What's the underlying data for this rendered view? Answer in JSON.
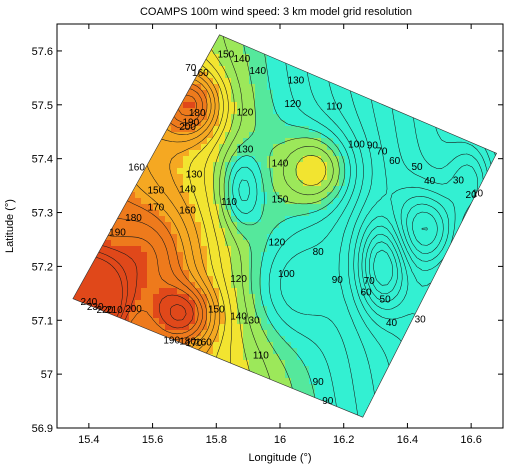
{
  "chart_data": {
    "type": "heatmap",
    "title": "COAMPS 100m wind speed: 3 km model grid resolution",
    "xlabel": "Longitude (°)",
    "ylabel": "Latitude (°)",
    "xlim": [
      15.3,
      16.7
    ],
    "ylim": [
      56.9,
      57.65
    ],
    "x_ticks": [
      "15.4",
      "15.6",
      "15.8",
      "16",
      "16.2",
      "16.4",
      "16.6"
    ],
    "y_ticks": [
      "57.6",
      "57.5",
      "57.4",
      "57.3",
      "57.2",
      "57.1",
      "57",
      "56.9"
    ],
    "x_tick_values": [
      15.4,
      15.6,
      15.8,
      16.0,
      16.2,
      16.4,
      16.6
    ],
    "y_tick_values": [
      57.6,
      57.5,
      57.4,
      57.3,
      57.2,
      57.1,
      57.0,
      56.9
    ],
    "domain_corners": [
      {
        "lon": 15.81,
        "lat": 57.63
      },
      {
        "lon": 16.68,
        "lat": 57.41
      },
      {
        "lon": 16.26,
        "lat": 56.92
      },
      {
        "lon": 15.35,
        "lat": 57.14
      }
    ],
    "color_scale": [
      {
        "max": 110,
        "color": "#33f0d2"
      },
      {
        "max": 120,
        "color": "#55e89c"
      },
      {
        "max": 140,
        "color": "#9ce85a"
      },
      {
        "max": 165,
        "color": "#f2e430"
      },
      {
        "max": 195,
        "color": "#f5a822"
      },
      {
        "max": 225,
        "color": "#ee7a1c"
      },
      {
        "max": 999,
        "color": "#e0481a"
      }
    ],
    "grid": false,
    "contour_labels": [
      {
        "text": "140",
        "lon": 15.88,
        "lat": 57.584
      },
      {
        "text": "150",
        "lon": 15.83,
        "lat": 57.593
      },
      {
        "text": "70",
        "lon": 15.72,
        "lat": 57.568
      },
      {
        "text": "160",
        "lon": 15.75,
        "lat": 57.558
      },
      {
        "text": "140",
        "lon": 15.93,
        "lat": 57.562
      },
      {
        "text": "130",
        "lon": 16.05,
        "lat": 57.544
      },
      {
        "text": "110",
        "lon": 16.17,
        "lat": 57.496
      },
      {
        "text": "180",
        "lon": 15.74,
        "lat": 57.484
      },
      {
        "text": "190",
        "lon": 15.72,
        "lat": 57.466
      },
      {
        "text": "200",
        "lon": 15.71,
        "lat": 57.458
      },
      {
        "text": "120",
        "lon": 15.89,
        "lat": 57.485
      },
      {
        "text": "120",
        "lon": 16.04,
        "lat": 57.501
      },
      {
        "text": "130",
        "lon": 15.89,
        "lat": 57.416
      },
      {
        "text": "140",
        "lon": 16.0,
        "lat": 57.39
      },
      {
        "text": "100",
        "lon": 16.24,
        "lat": 57.426
      },
      {
        "text": "90",
        "lon": 16.29,
        "lat": 57.424
      },
      {
        "text": "70",
        "lon": 16.32,
        "lat": 57.413
      },
      {
        "text": "60",
        "lon": 16.36,
        "lat": 57.395
      },
      {
        "text": "50",
        "lon": 16.43,
        "lat": 57.384
      },
      {
        "text": "40",
        "lon": 16.47,
        "lat": 57.358
      },
      {
        "text": "30",
        "lon": 16.56,
        "lat": 57.359
      },
      {
        "text": "20",
        "lon": 16.6,
        "lat": 57.332
      },
      {
        "text": "10",
        "lon": 16.62,
        "lat": 57.335
      },
      {
        "text": "160",
        "lon": 15.55,
        "lat": 57.383
      },
      {
        "text": "130",
        "lon": 15.73,
        "lat": 57.37
      },
      {
        "text": "140",
        "lon": 15.71,
        "lat": 57.342
      },
      {
        "text": "150",
        "lon": 15.61,
        "lat": 57.34
      },
      {
        "text": "160",
        "lon": 15.71,
        "lat": 57.303
      },
      {
        "text": "170",
        "lon": 15.61,
        "lat": 57.309
      },
      {
        "text": "180",
        "lon": 15.54,
        "lat": 57.289
      },
      {
        "text": "190",
        "lon": 15.49,
        "lat": 57.262
      },
      {
        "text": "110",
        "lon": 15.84,
        "lat": 57.319
      },
      {
        "text": "150",
        "lon": 16.0,
        "lat": 57.323
      },
      {
        "text": "120",
        "lon": 15.99,
        "lat": 57.244
      },
      {
        "text": "80",
        "lon": 16.12,
        "lat": 57.226
      },
      {
        "text": "100",
        "lon": 16.02,
        "lat": 57.185
      },
      {
        "text": "120",
        "lon": 15.87,
        "lat": 57.176
      },
      {
        "text": "90",
        "lon": 16.18,
        "lat": 57.174
      },
      {
        "text": "70",
        "lon": 16.28,
        "lat": 57.172
      },
      {
        "text": "60",
        "lon": 16.27,
        "lat": 57.151
      },
      {
        "text": "50",
        "lon": 16.33,
        "lat": 57.138
      },
      {
        "text": "40",
        "lon": 16.35,
        "lat": 57.094
      },
      {
        "text": "30",
        "lon": 16.44,
        "lat": 57.101
      },
      {
        "text": "240",
        "lon": 15.4,
        "lat": 57.133
      },
      {
        "text": "230",
        "lon": 15.42,
        "lat": 57.124
      },
      {
        "text": "220",
        "lon": 15.45,
        "lat": 57.118
      },
      {
        "text": "210",
        "lon": 15.48,
        "lat": 57.118
      },
      {
        "text": "200",
        "lon": 15.54,
        "lat": 57.12
      },
      {
        "text": "150",
        "lon": 15.8,
        "lat": 57.119
      },
      {
        "text": "140",
        "lon": 15.87,
        "lat": 57.106
      },
      {
        "text": "130",
        "lon": 15.91,
        "lat": 57.099
      },
      {
        "text": "190",
        "lon": 15.66,
        "lat": 57.062
      },
      {
        "text": "180",
        "lon": 15.71,
        "lat": 57.06
      },
      {
        "text": "170",
        "lon": 15.73,
        "lat": 57.057
      },
      {
        "text": "160",
        "lon": 15.76,
        "lat": 57.058
      },
      {
        "text": "110",
        "lon": 15.94,
        "lat": 57.034
      },
      {
        "text": "90",
        "lon": 16.12,
        "lat": 56.985
      },
      {
        "text": "90",
        "lon": 16.15,
        "lat": 56.949
      }
    ]
  }
}
